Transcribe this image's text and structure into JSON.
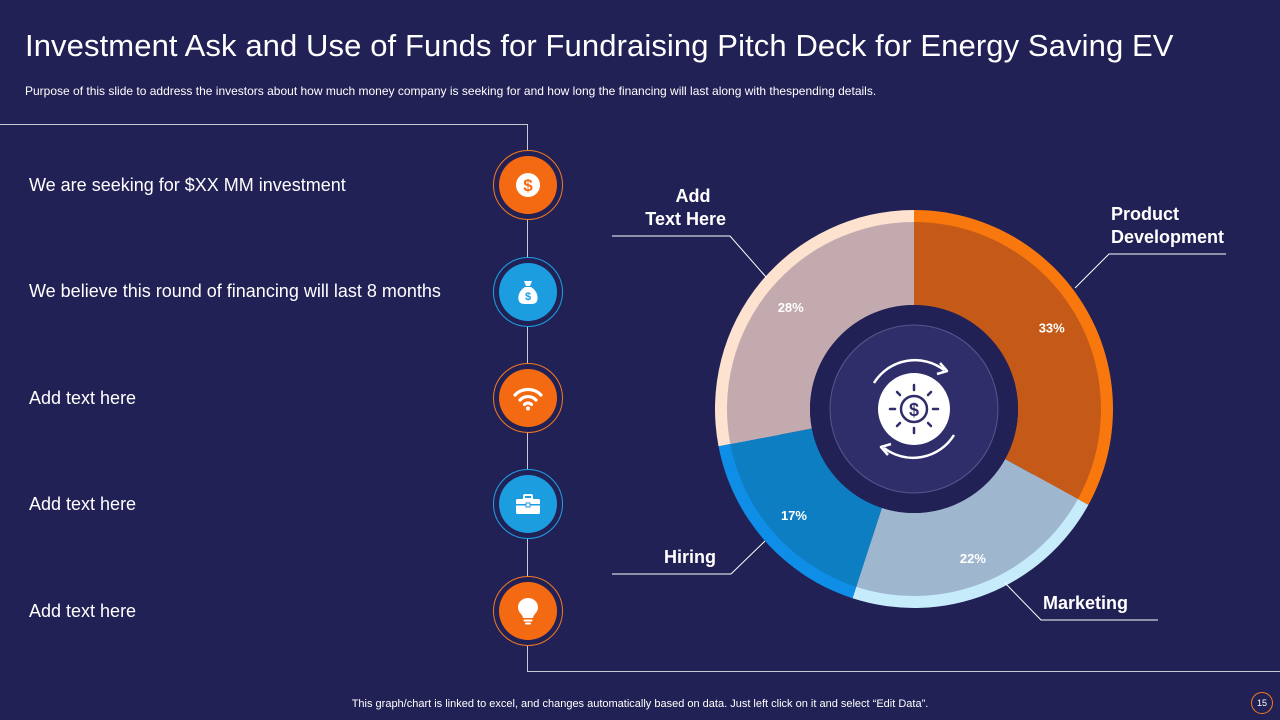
{
  "slide": {
    "title": "Investment Ask and Use of Funds for Fundraising Pitch Deck for Energy Saving EV",
    "subtitle": "Purpose of this slide to address the investors about how much money company is seeking for and how long the financing will last along with thespending details.",
    "footer": "This graph/chart is linked to excel, and changes automatically based on data. Just left click on it and select “Edit Data”.",
    "page_number": "15"
  },
  "items": [
    {
      "text": "We are seeking for $XX MM  investment",
      "icon": "dollar-coin-icon",
      "color": "#f46a12"
    },
    {
      "text": "We believe this round of financing will last 8 months",
      "icon": "money-bag-icon",
      "color": "#1b9de0"
    },
    {
      "text": "Add  text here",
      "icon": "wifi-icon",
      "color": "#f46a12"
    },
    {
      "text": "Add  text here",
      "icon": "briefcase-icon",
      "color": "#1b9de0"
    },
    {
      "text": "Add  text here",
      "icon": "lightbulb-icon",
      "color": "#f46a12"
    }
  ],
  "chart_labels": {
    "product": "Product\nDevelopment",
    "marketing": "Marketing",
    "hiring": "Hiring",
    "other": "Add\nText Here"
  },
  "chart_data": {
    "type": "pie",
    "style": "donut",
    "title": "",
    "categories": [
      "Product Development",
      "Marketing",
      "Hiring",
      "Add Text Here"
    ],
    "values": [
      33,
      22,
      17,
      28
    ],
    "value_labels": [
      "33%",
      "22%",
      "17%",
      "28%"
    ],
    "center_icon": "dollar-cycle-icon",
    "colors": {
      "product": {
        "outer": "#f9780e",
        "inner": "#c55a18"
      },
      "marketing": {
        "outer": "#c6ecfb",
        "inner": "#9fb6cf"
      },
      "hiring": {
        "outer": "#0e8ee6",
        "inner": "#0e7ec2"
      },
      "other": {
        "outer": "#fde2cf",
        "inner": "#c3aaae"
      }
    }
  }
}
